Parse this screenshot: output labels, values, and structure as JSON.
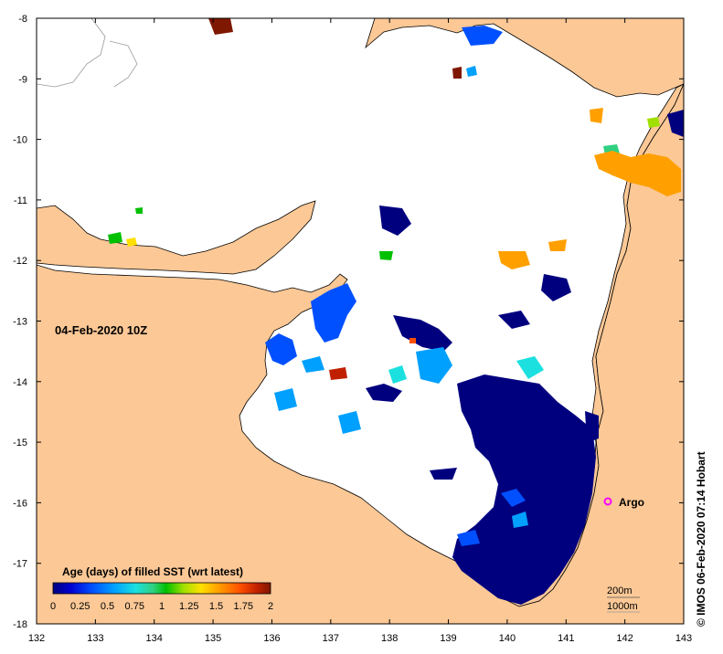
{
  "map": {
    "timestamp": "04-Feb-2020 10Z",
    "colorbar": {
      "title": "Age (days) of filled SST (wrt latest)",
      "ticks": [
        "0",
        "0.25",
        "0.5",
        "0.75",
        "1",
        "1.25",
        "1.5",
        "1.75",
        "2"
      ],
      "colors": [
        "#00007f",
        "#0000d0",
        "#0050ff",
        "#00a0ff",
        "#1ce0e0",
        "#30d080",
        "#00c000",
        "#a0e000",
        "#ffe000",
        "#ffa000",
        "#ff5000",
        "#c02000",
        "#7f1800"
      ]
    },
    "x_ticks": [
      "132",
      "133",
      "134",
      "135",
      "136",
      "137",
      "138",
      "139",
      "140",
      "141",
      "142",
      "143"
    ],
    "y_ticks": [
      "-8",
      "-9",
      "-10",
      "-11",
      "-12",
      "-13",
      "-14",
      "-15",
      "-16",
      "-17",
      "-18"
    ],
    "marker": {
      "label": "Argo",
      "color": "#ff00ff"
    },
    "scale": {
      "contour_1": "200m",
      "contour_2": "1000m"
    },
    "credit": "© IMOS 06-Feb-2020 07:14 Hobart",
    "colors": {
      "land": "#fbc896",
      "sea": "#ffffff",
      "coast": "#000000"
    }
  }
}
